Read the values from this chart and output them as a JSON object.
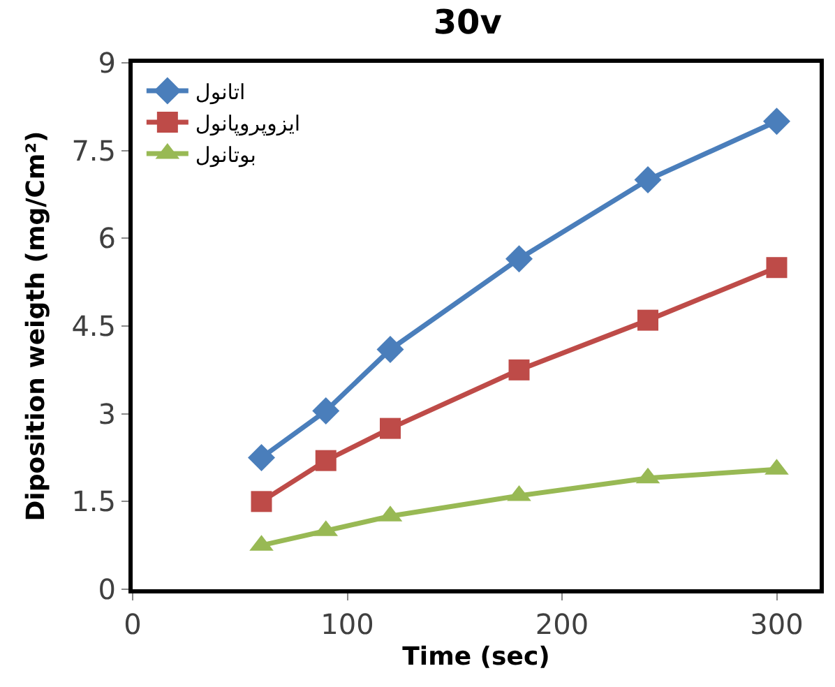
{
  "chart_data": {
    "type": "line",
    "title": "30v",
    "xlabel": "Time (sec)",
    "ylabel": "Diposition weigth (mg/Cm²)",
    "x": [
      60,
      90,
      120,
      180,
      240,
      300
    ],
    "series": [
      {
        "name": "اتانول",
        "color": "#4a7ebb",
        "marker": "diamond",
        "values": [
          2.25,
          3.05,
          4.1,
          5.65,
          7.0,
          8.0
        ]
      },
      {
        "name": "ایزوپروپانول",
        "color": "#be4b48",
        "marker": "square",
        "values": [
          1.5,
          2.2,
          2.75,
          3.75,
          4.6,
          5.5
        ]
      },
      {
        "name": "بوتانول",
        "color": "#98b954",
        "marker": "triangle",
        "values": [
          0.75,
          1.0,
          1.25,
          1.6,
          1.9,
          2.05
        ]
      }
    ],
    "xlim": [
      0,
      320
    ],
    "xticks": [
      0,
      100,
      200,
      300
    ],
    "ylim": [
      0,
      9
    ],
    "yticks": [
      0,
      1.5,
      3,
      4.5,
      6,
      7.5,
      9
    ],
    "legend": "top left",
    "line_style": "solid"
  }
}
